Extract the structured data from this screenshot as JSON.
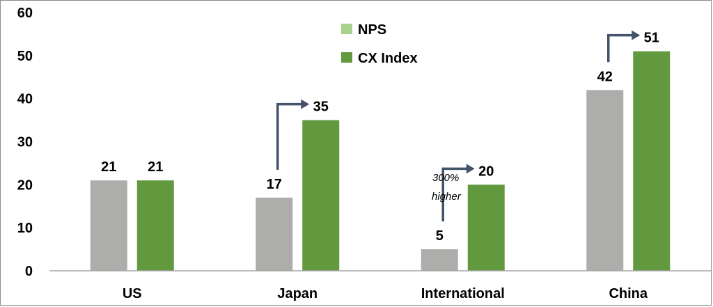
{
  "chart_data": {
    "type": "bar",
    "categories": [
      "US",
      "Japan",
      "International",
      "China"
    ],
    "series": [
      {
        "name": "NPS",
        "values": [
          21,
          17,
          5,
          42
        ],
        "color": "#adadab"
      },
      {
        "name": "CX Index",
        "values": [
          21,
          35,
          20,
          51
        ],
        "color": "#62993e"
      }
    ],
    "ylim": [
      0,
      60
    ],
    "yticks": [
      0,
      10,
      20,
      30,
      40,
      50,
      60
    ],
    "legend_colors": [
      "#a9d18e",
      "#62993e"
    ],
    "legend_position": "top-center",
    "grid": false,
    "title": "",
    "xlabel": "",
    "ylabel": "",
    "annotation": [
      "300%",
      "higher"
    ],
    "arrow_color": "#44546a",
    "arrows_on": [
      "Japan",
      "International",
      "China"
    ]
  }
}
